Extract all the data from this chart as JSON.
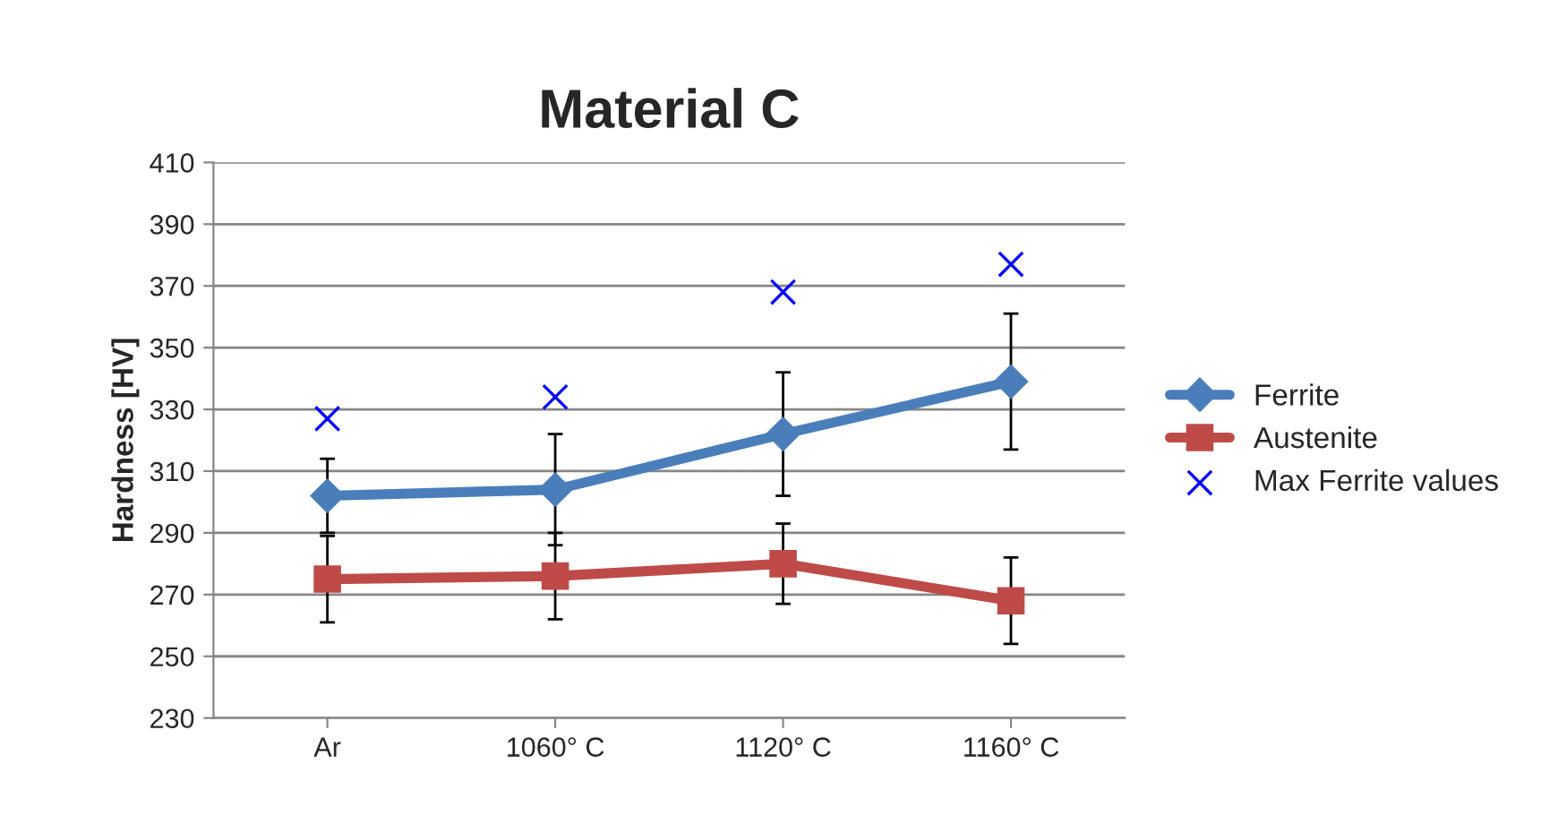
{
  "chart_data": {
    "type": "line",
    "title": "Material C",
    "ylabel": "Hardness [HV]",
    "categories": [
      "Ar",
      "1060° C",
      "1120° C",
      "1160° C"
    ],
    "series": [
      {
        "name": "Ferrite",
        "color": "#4a7ebb",
        "marker": "diamond",
        "values": [
          302,
          304,
          322,
          339
        ],
        "errors": [
          12,
          18,
          20,
          22
        ]
      },
      {
        "name": "Austenite",
        "color": "#be4b48",
        "marker": "square",
        "values": [
          275,
          276,
          280,
          268
        ],
        "errors": [
          14,
          14,
          13,
          14
        ]
      },
      {
        "name": "Max Ferrite values",
        "color": "#0000ff",
        "type": "scatter",
        "marker": "cross",
        "values": [
          327,
          334,
          368,
          377
        ]
      }
    ],
    "ylim": [
      230,
      410
    ],
    "yticks": [
      230,
      250,
      270,
      290,
      310,
      330,
      350,
      370,
      390,
      410
    ],
    "grid": "y",
    "legend": "right"
  }
}
